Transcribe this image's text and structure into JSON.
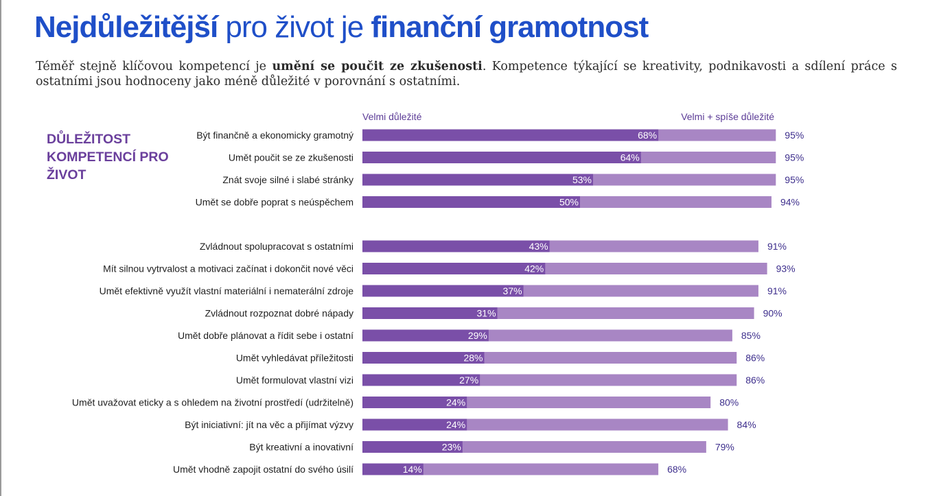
{
  "header": {
    "title_part1": "Nejdůležitější",
    "title_part2": " pro život je ",
    "title_part3": "finanční gramotnost",
    "subtitle_part1": "Téměř stejně klíčovou kompetencí je ",
    "subtitle_bold": "umění se poučit ze zkušenosti",
    "subtitle_part2": ". Kompetence týkající se kreativity, podnikavosti a sdílení práce s ostatními jsou hodnoceny jako méně důležité v porovnání s ostatními."
  },
  "side_title": "DŮLEŽITOST KOMPETENCÍ PRO ŽIVOT",
  "colors": {
    "title": "#1f4fc8",
    "bar_dark": "#7a4fa8",
    "bar_light": "#a886c4",
    "side_title": "#6a3f9c"
  },
  "chart_data": {
    "type": "bar",
    "orientation": "horizontal",
    "stacked_overlay": true,
    "categories": [
      "Být finančně a ekonomicky gramotný",
      "Umět poučit se ze zkušenosti",
      "Znát svoje silné i slabé stránky",
      "Umět se dobře poprat s neúspěchem",
      "Zvládnout spolupracovat s ostatními",
      "Mít silnou vytrvalost a motivaci začínat i dokončit nové věci",
      "Umět efektivně využít vlastní materiální i nematerální zdroje",
      "Zvládnout rozpoznat dobré nápady",
      "Umět dobře plánovat a řídit sebe i ostatní",
      "Umět vyhledávat příležitosti",
      "Umět formulovat vlastní vizi",
      "Umět uvažovat eticky a s ohledem na životní prostředí (udržitelně)",
      "Být iniciativní: jít na věc a přijímat výzvy",
      "Být kreativní a inovativní",
      "Umět vhodně zapojit ostatní do svého úsilí"
    ],
    "series": [
      {
        "name": "Velmi důležité",
        "values": [
          68,
          64,
          53,
          50,
          43,
          42,
          37,
          31,
          29,
          28,
          27,
          24,
          24,
          23,
          14
        ],
        "labels": [
          "68%",
          "64%",
          "53%",
          "50%",
          "43%",
          "42%",
          "37%",
          "31%",
          "29%",
          "28%",
          "27%",
          "24%",
          "24%",
          "23%",
          "14%"
        ]
      },
      {
        "name": "Velmi + spíše důležité",
        "values": [
          95,
          95,
          95,
          94,
          91,
          93,
          91,
          90,
          85,
          86,
          86,
          80,
          84,
          79,
          68
        ],
        "labels": [
          "95%",
          "95%",
          "95%",
          "94%",
          "91%",
          "93%",
          "91%",
          "90%",
          "85%",
          "86%",
          "86%",
          "80%",
          "84%",
          "79%",
          "68%"
        ]
      }
    ],
    "xlim": [
      0,
      100
    ],
    "grid": false,
    "legend": "top, as column headings"
  }
}
